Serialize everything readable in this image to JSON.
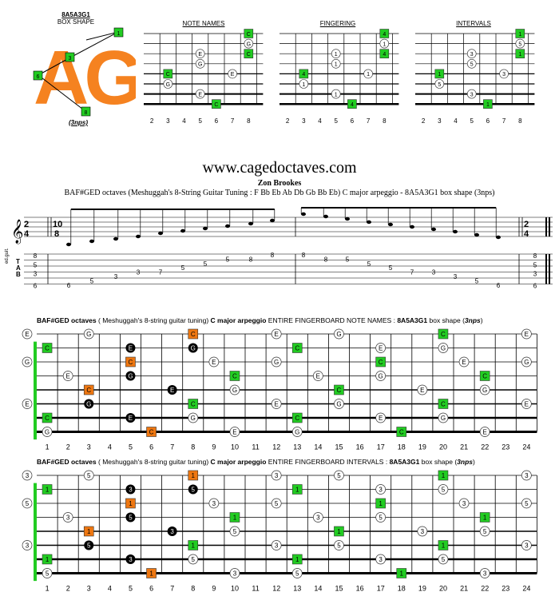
{
  "logo": {
    "code": "8A5A3G1",
    "shape_label": "BOX SHAPE",
    "big_text": "AG",
    "nps_label": "(3nps)",
    "badges": [
      "1",
      "3",
      "6",
      "8"
    ]
  },
  "mini": {
    "titles": [
      "NOTE NAMES",
      "FINGERING",
      "INTERVALS"
    ],
    "fret_numbers": [
      "2",
      "3",
      "4",
      "5",
      "6",
      "7",
      "8"
    ]
  },
  "website": "www.cagedoctaves.com",
  "author": "Zon Brookes",
  "subtitle": "BAF#GED octaves (Meshuggah's 8-String Guitar Tuning : F Bb Eb Ab Db Gb Bb Eb) C major arpeggio - 8A5A3G1 box shape (3nps)",
  "staff": {
    "instrument": "ed.guit.",
    "tab_label": "TAB",
    "left_numbers": [
      "8",
      "5",
      "3",
      "6"
    ],
    "right_numbers": [
      "8",
      "5",
      "3",
      "6"
    ],
    "tab_notes": [
      "6",
      "5",
      "3",
      "3",
      "7",
      "5",
      "5",
      "5",
      "8",
      "8",
      "8",
      "8",
      "5",
      "5",
      "5",
      "7",
      "3",
      "3",
      "5",
      "6"
    ]
  },
  "board1": {
    "title_bold1": "BAF#GED octaves",
    "title_plain1": " ( Meshuggah's 8-string guitar tuning) ",
    "title_bold2": "C major arpeggio",
    "title_plain2": " ENTIRE FINGERBOARD NOTE NAMES : ",
    "title_bold3": "8A5A3G1",
    "title_plain3": " box shape (",
    "title_bold4": "3nps",
    "title_plain4": ")"
  },
  "board2": {
    "title_bold1": "BAF#GED octaves",
    "title_plain1": " ( Meshuggah's 8-string guitar tuning) ",
    "title_bold2": "C major arpeggio",
    "title_plain2": " ENTIRE FINGERBOARD INTERVALS : ",
    "title_bold3": "8A5A3G1",
    "title_plain3": " box shape (",
    "title_bold4": "3nps",
    "title_plain4": ")"
  },
  "fret_numbers": [
    "1",
    "2",
    "3",
    "4",
    "5",
    "6",
    "7",
    "8",
    "9",
    "10",
    "11",
    "12",
    "13",
    "14",
    "15",
    "16",
    "17",
    "18",
    "19",
    "20",
    "21",
    "22",
    "23",
    "24"
  ],
  "fingerboard_notes": [
    {
      "s": 1,
      "f": 0,
      "n": "E",
      "t": "o"
    },
    {
      "s": 1,
      "f": 3,
      "n": "G",
      "t": "o"
    },
    {
      "s": 1,
      "f": 8,
      "n": "C",
      "t": "a"
    },
    {
      "s": 1,
      "f": 12,
      "n": "E",
      "t": "o"
    },
    {
      "s": 1,
      "f": 15,
      "n": "G",
      "t": "o"
    },
    {
      "s": 1,
      "f": 20,
      "n": "C",
      "t": "g"
    },
    {
      "s": 1,
      "f": 24,
      "n": "E",
      "t": "o"
    },
    {
      "s": 2,
      "f": 1,
      "n": "C",
      "t": "g"
    },
    {
      "s": 2,
      "f": 5,
      "n": "E",
      "t": "b"
    },
    {
      "s": 2,
      "f": 8,
      "n": "G",
      "t": "b"
    },
    {
      "s": 2,
      "f": 13,
      "n": "C",
      "t": "g"
    },
    {
      "s": 2,
      "f": 17,
      "n": "E",
      "t": "o"
    },
    {
      "s": 2,
      "f": 20,
      "n": "G",
      "t": "o"
    },
    {
      "s": 3,
      "f": 0,
      "n": "G",
      "t": "o"
    },
    {
      "s": 3,
      "f": 5,
      "n": "C",
      "t": "a"
    },
    {
      "s": 3,
      "f": 9,
      "n": "E",
      "t": "o"
    },
    {
      "s": 3,
      "f": 12,
      "n": "G",
      "t": "o"
    },
    {
      "s": 3,
      "f": 17,
      "n": "C",
      "t": "g"
    },
    {
      "s": 3,
      "f": 21,
      "n": "E",
      "t": "o"
    },
    {
      "s": 3,
      "f": 24,
      "n": "G",
      "t": "o"
    },
    {
      "s": 4,
      "f": 2,
      "n": "E",
      "t": "o"
    },
    {
      "s": 4,
      "f": 5,
      "n": "G",
      "t": "b"
    },
    {
      "s": 4,
      "f": 10,
      "n": "C",
      "t": "g"
    },
    {
      "s": 4,
      "f": 14,
      "n": "E",
      "t": "o"
    },
    {
      "s": 4,
      "f": 17,
      "n": "G",
      "t": "o"
    },
    {
      "s": 4,
      "f": 22,
      "n": "C",
      "t": "g"
    },
    {
      "s": 5,
      "f": 3,
      "n": "C",
      "t": "a"
    },
    {
      "s": 5,
      "f": 7,
      "n": "E",
      "t": "b"
    },
    {
      "s": 5,
      "f": 10,
      "n": "G",
      "t": "o"
    },
    {
      "s": 5,
      "f": 15,
      "n": "C",
      "t": "g"
    },
    {
      "s": 5,
      "f": 19,
      "n": "E",
      "t": "o"
    },
    {
      "s": 5,
      "f": 22,
      "n": "G",
      "t": "o"
    },
    {
      "s": 6,
      "f": 0,
      "n": "E",
      "t": "o"
    },
    {
      "s": 6,
      "f": 3,
      "n": "G",
      "t": "b"
    },
    {
      "s": 6,
      "f": 8,
      "n": "C",
      "t": "g"
    },
    {
      "s": 6,
      "f": 12,
      "n": "E",
      "t": "o"
    },
    {
      "s": 6,
      "f": 15,
      "n": "G",
      "t": "o"
    },
    {
      "s": 6,
      "f": 20,
      "n": "C",
      "t": "g"
    },
    {
      "s": 6,
      "f": 24,
      "n": "E",
      "t": "o"
    },
    {
      "s": 7,
      "f": 1,
      "n": "C",
      "t": "g"
    },
    {
      "s": 7,
      "f": 5,
      "n": "E",
      "t": "b"
    },
    {
      "s": 7,
      "f": 8,
      "n": "G",
      "t": "o"
    },
    {
      "s": 7,
      "f": 13,
      "n": "C",
      "t": "g"
    },
    {
      "s": 7,
      "f": 17,
      "n": "E",
      "t": "o"
    },
    {
      "s": 7,
      "f": 20,
      "n": "G",
      "t": "o"
    },
    {
      "s": 8,
      "f": 1,
      "n": "G",
      "t": "o"
    },
    {
      "s": 8,
      "f": 6,
      "n": "C",
      "t": "a"
    },
    {
      "s": 8,
      "f": 10,
      "n": "E",
      "t": "o"
    },
    {
      "s": 8,
      "f": 13,
      "n": "G",
      "t": "o"
    },
    {
      "s": 8,
      "f": 18,
      "n": "C",
      "t": "g"
    },
    {
      "s": 8,
      "f": 22,
      "n": "E",
      "t": "o"
    }
  ],
  "interval_map": {
    "C": "1",
    "E": "3",
    "G": "5"
  },
  "colors": {
    "green": "#22cc22",
    "orange": "#ee7711",
    "black": "#000000",
    "logo": "#f58220"
  }
}
